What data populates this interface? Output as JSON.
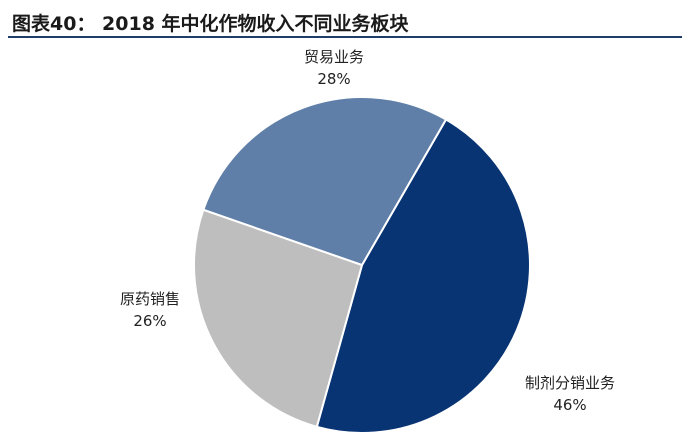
{
  "header": {
    "title": "图表40： 2018 年中化作物收入不同业务板块"
  },
  "chart_data": {
    "type": "pie",
    "title": "2018 年中化作物收入不同业务板块",
    "slices": [
      {
        "label": "制剂分销业务",
        "value": 46,
        "value_label": "46%",
        "color": "#083474"
      },
      {
        "label": "原药销售",
        "value": 26,
        "value_label": "26%",
        "color": "#bebebe"
      },
      {
        "label": "贸易业务",
        "value": 28,
        "value_label": "28%",
        "color": "#5f7fa8"
      }
    ],
    "colors": {
      "border": "#ffffff",
      "title_rule": "#1f3d6b"
    }
  }
}
